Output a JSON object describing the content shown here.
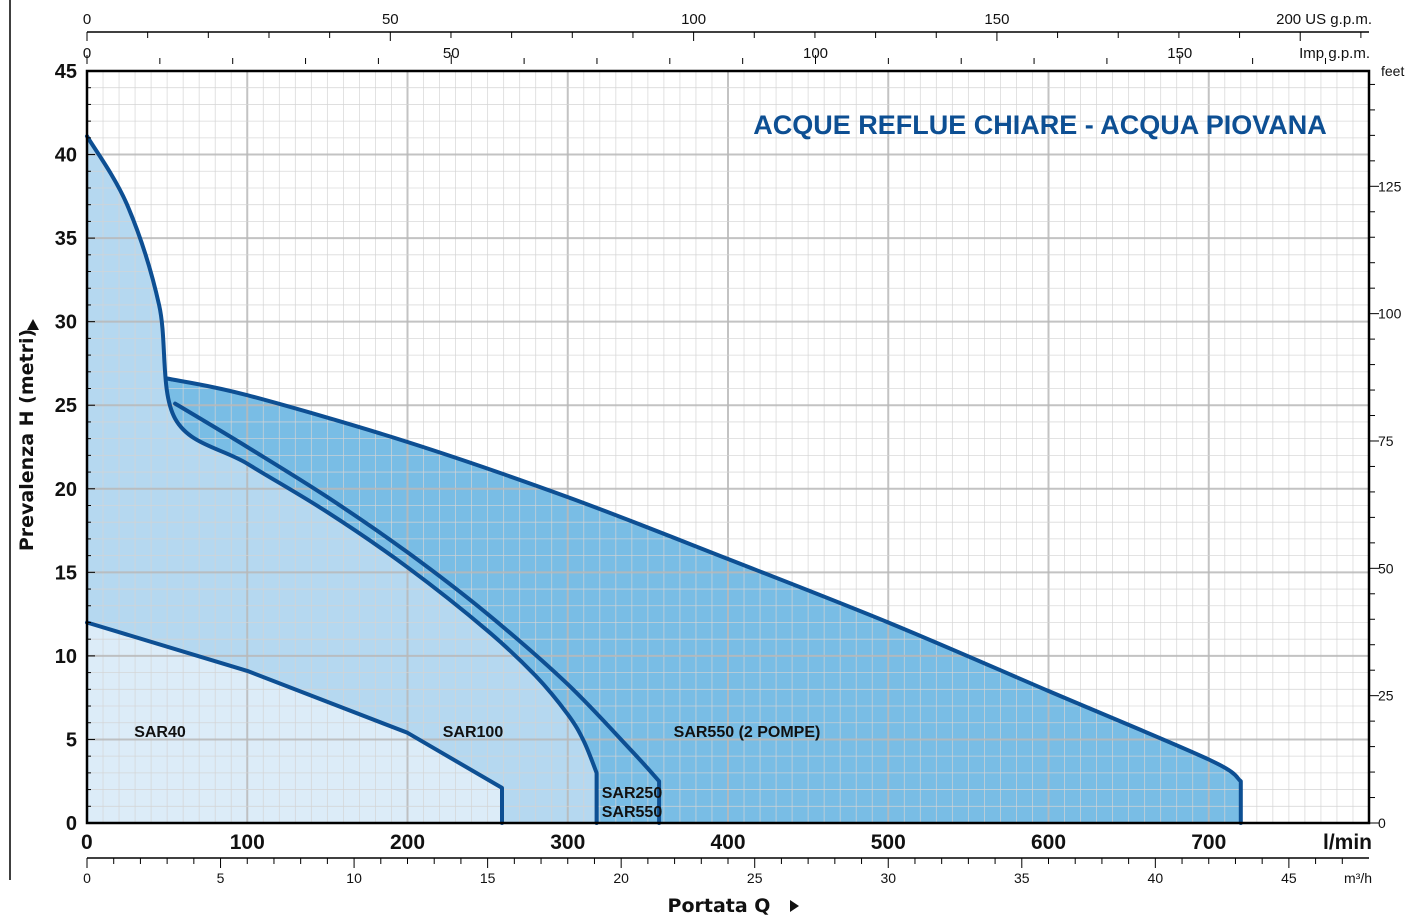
{
  "chart_data": {
    "type": "area",
    "title": "ACQUE REFLUE CHIARE - ACQUA PIOVANA",
    "xlabel": "Portata  Q",
    "ylabel": "Prevalenza  H  (metri)",
    "x_unit": "l/min",
    "xlim": [
      0,
      800
    ],
    "ylim": [
      0,
      45
    ],
    "x_ticks": [
      0,
      100,
      200,
      300,
      400,
      500,
      600,
      700
    ],
    "y_ticks": [
      0,
      5,
      10,
      15,
      20,
      25,
      30,
      35,
      40,
      45
    ],
    "grid": true,
    "secondary_axes": {
      "us_gpm": {
        "unit": "200 US g.p.m.",
        "ticks": [
          "0",
          "50",
          "100",
          "150"
        ],
        "max_label": 200
      },
      "imp_gpm": {
        "unit": "Imp g.p.m.",
        "ticks": [
          "0",
          "50",
          "100",
          "150"
        ]
      },
      "m3h": {
        "unit": "m³/h",
        "ticks": [
          "0",
          "5",
          "10",
          "15",
          "20",
          "25",
          "30",
          "35",
          "40",
          "45"
        ]
      },
      "feet": {
        "unit": "feet",
        "ticks": [
          "0",
          "25",
          "50",
          "75",
          "100",
          "125"
        ]
      }
    },
    "series": [
      {
        "name": "SAR40",
        "x": [
          0,
          100,
          200,
          259,
          259
        ],
        "y": [
          12,
          9.1,
          5.4,
          2.1,
          0
        ]
      },
      {
        "name": "SAR100",
        "x": [
          0,
          25,
          45,
          55,
          100,
          150,
          200,
          250,
          280,
          300,
          310,
          318,
          318
        ],
        "y": [
          41.1,
          37,
          31,
          24.2,
          21.5,
          18.6,
          15.3,
          11.5,
          8.8,
          6.5,
          4.9,
          3.0,
          0
        ]
      },
      {
        "name": "SAR250",
        "x": [
          55,
          100,
          150,
          200,
          250,
          300,
          340,
          357,
          357
        ],
        "y": [
          25.1,
          22.5,
          19.5,
          16.2,
          12.5,
          8.3,
          4.3,
          2.5,
          0
        ]
      },
      {
        "name": "SAR550",
        "x": [
          55,
          100,
          150,
          200,
          250,
          300,
          340,
          357,
          357
        ],
        "y": [
          25.1,
          22.5,
          19.5,
          16.2,
          12.5,
          8.3,
          4.3,
          2.5,
          0
        ]
      },
      {
        "name": "SAR550 (2 POMPE)",
        "x": [
          50,
          100,
          200,
          300,
          400,
          500,
          600,
          700,
          720,
          720
        ],
        "y": [
          26.6,
          25.6,
          22.8,
          19.5,
          15.8,
          12.0,
          7.9,
          3.8,
          2.5,
          0
        ]
      }
    ],
    "colors": {
      "curve": "#0d4f93",
      "fill_sar40": "#dcecf8",
      "fill_sar100": "#b5d8f0",
      "fill_sar550_2pompe": "#79bde5",
      "title": "#0d4f93"
    }
  }
}
